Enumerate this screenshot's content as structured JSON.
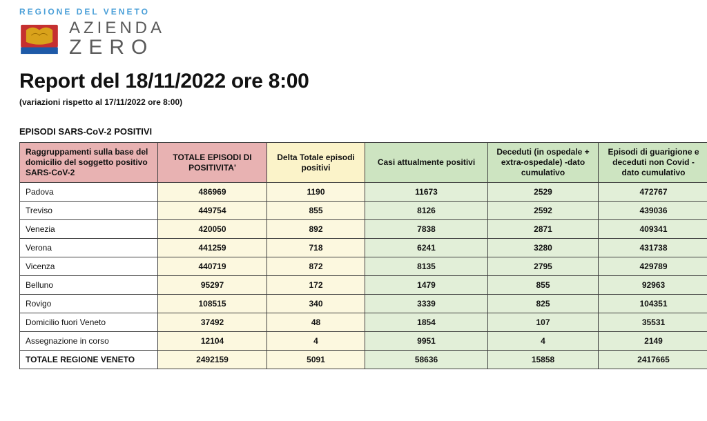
{
  "header": {
    "region_label": "REGIONE DEL VENETO",
    "region_label_color": "#4a9fd8",
    "brand_top": "AZIENDA",
    "brand_bottom": "ZERO",
    "crest_colors": {
      "shield": "#c53030",
      "lion": "#d9a21b",
      "base": "#1e5aa8"
    }
  },
  "title": "Report del 18/11/2022 ore 8:00",
  "subtitle": "(variazioni rispetto al 17/11/2022 ore 8:00)",
  "section_title": "EPISODI SARS-CoV-2 POSITIVI",
  "table": {
    "header_colors": {
      "pink": "#e8b2b2",
      "yellow": "#fbf3c9",
      "green": "#cde4c1"
    },
    "body_colors": {
      "yellow": "#fcf8df",
      "green": "#e2efd8",
      "white": "#ffffff"
    },
    "border_color": "#3f3f3f",
    "columns": [
      {
        "label": "Raggruppamenti sulla base del domicilio del soggetto positivo SARS-CoV-2",
        "group": "pink",
        "align": "left"
      },
      {
        "label": "TOTALE EPISODI DI POSITIVITA'",
        "group": "pink",
        "align": "center"
      },
      {
        "label": "Delta Totale episodi positivi",
        "group": "yellow",
        "align": "center"
      },
      {
        "label": "Casi attualmente positivi",
        "group": "green",
        "align": "center"
      },
      {
        "label": "Deceduti (in ospedale + extra-ospedale) -dato cumulativo",
        "group": "green",
        "align": "center"
      },
      {
        "label": "Episodi di guarigione e deceduti non Covid - dato cumulativo",
        "group": "green",
        "align": "center"
      }
    ],
    "rows": [
      {
        "label": "Padova",
        "totale": "486969",
        "delta": "1190",
        "attuali": "11673",
        "deceduti": "2529",
        "guarigione": "472767"
      },
      {
        "label": "Treviso",
        "totale": "449754",
        "delta": "855",
        "attuali": "8126",
        "deceduti": "2592",
        "guarigione": "439036"
      },
      {
        "label": "Venezia",
        "totale": "420050",
        "delta": "892",
        "attuali": "7838",
        "deceduti": "2871",
        "guarigione": "409341"
      },
      {
        "label": "Verona",
        "totale": "441259",
        "delta": "718",
        "attuali": "6241",
        "deceduti": "3280",
        "guarigione": "431738"
      },
      {
        "label": "Vicenza",
        "totale": "440719",
        "delta": "872",
        "attuali": "8135",
        "deceduti": "2795",
        "guarigione": "429789"
      },
      {
        "label": "Belluno",
        "totale": "95297",
        "delta": "172",
        "attuali": "1479",
        "deceduti": "855",
        "guarigione": "92963"
      },
      {
        "label": "Rovigo",
        "totale": "108515",
        "delta": "340",
        "attuali": "3339",
        "deceduti": "825",
        "guarigione": "104351"
      },
      {
        "label": "Domicilio fuori Veneto",
        "totale": "37492",
        "delta": "48",
        "attuali": "1854",
        "deceduti": "107",
        "guarigione": "35531"
      },
      {
        "label": "Assegnazione in corso",
        "totale": "12104",
        "delta": "4",
        "attuali": "9951",
        "deceduti": "4",
        "guarigione": "2149"
      }
    ],
    "total_row": {
      "label": "TOTALE REGIONE VENETO",
      "totale": "2492159",
      "delta": "5091",
      "attuali": "58636",
      "deceduti": "15858",
      "guarigione": "2417665"
    }
  }
}
